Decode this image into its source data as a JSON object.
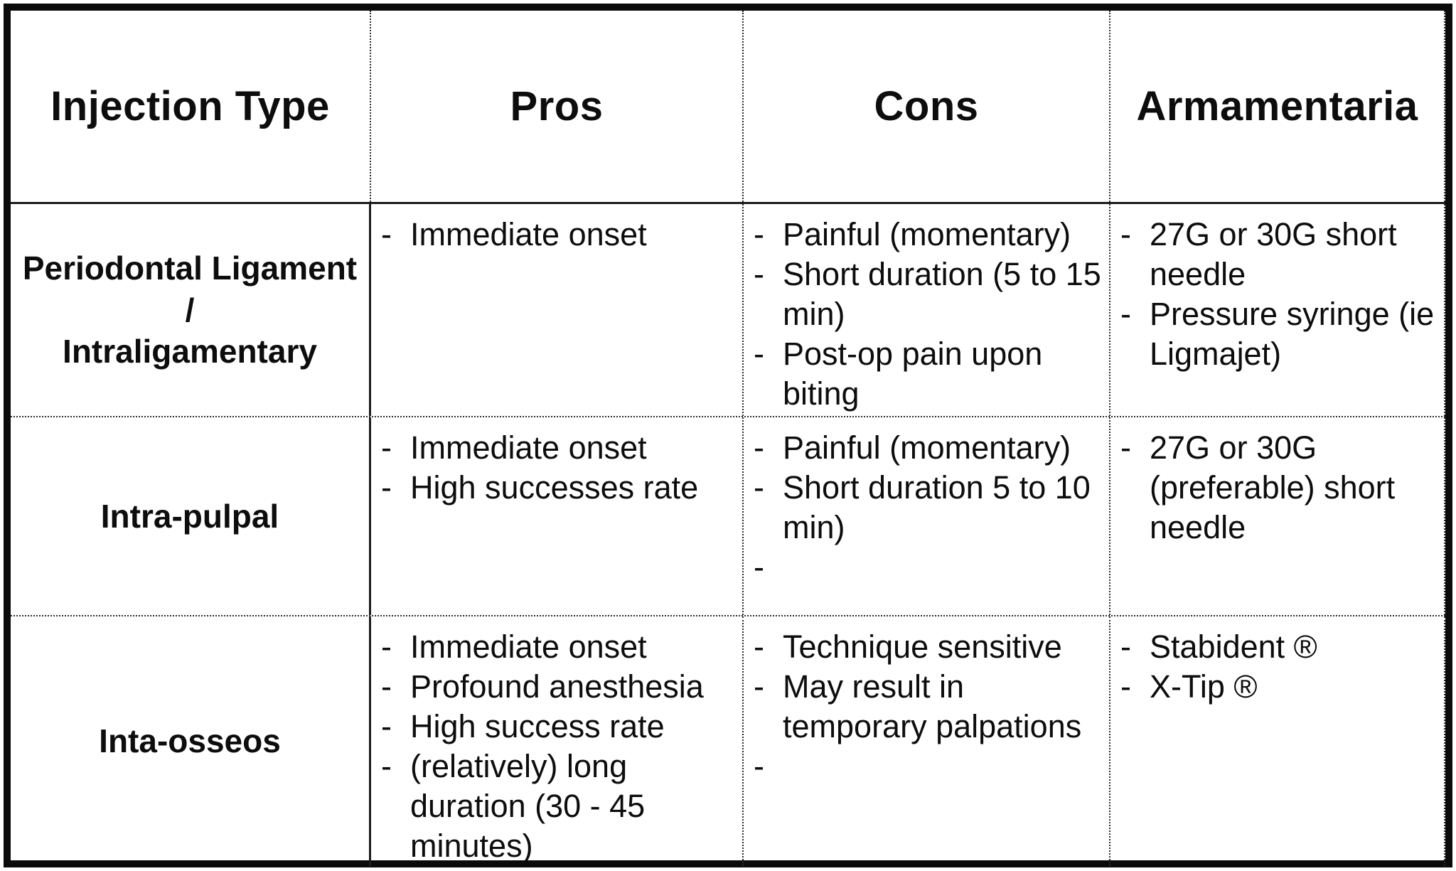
{
  "page": {
    "background_color": "#ffffff",
    "frame_border_color": "#0b0b0b",
    "bullet_char": "-"
  },
  "table": {
    "columns": [
      "Injection Type",
      "Pros",
      "Cons",
      "Armamentaria"
    ],
    "rows": [
      {
        "injection_type": "Periodontal Ligament /\nIntraligamentary",
        "pros": [
          "Immediate onset"
        ],
        "cons": [
          "Painful (momentary)",
          "Short duration (5 to 15 min)",
          "Post-op pain upon biting"
        ],
        "armamentaria": [
          "27G or 30G short needle",
          "Pressure syringe (ie Ligmajet)"
        ]
      },
      {
        "injection_type": "Intra-pulpal",
        "pros": [
          "Immediate onset",
          "High successes rate"
        ],
        "cons": [
          "Painful (momentary)",
          "Short duration 5 to 10 min)",
          ""
        ],
        "armamentaria": [
          "27G or 30G (preferable) short needle"
        ]
      },
      {
        "injection_type": "Inta-osseos",
        "pros": [
          "Immediate onset",
          "Profound anesthesia",
          "High success rate",
          "(relatively) long duration (30 - 45 minutes)"
        ],
        "cons": [
          "Technique sensitive",
          "May result in temporary palpations",
          ""
        ],
        "armamentaria": [
          "Stabident ®",
          "X-Tip ®"
        ]
      }
    ]
  }
}
